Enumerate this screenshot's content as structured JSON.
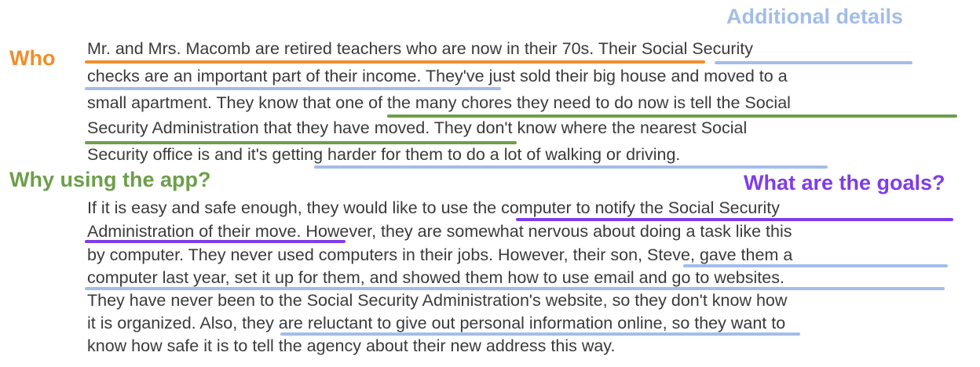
{
  "colors": {
    "who": "#ee8f2a",
    "additional": "#a3bde9",
    "why": "#6e9e4a",
    "goals": "#7f3de8",
    "text": "#3a3a3a"
  },
  "labels": {
    "additional_details": "Additional details",
    "who": "Who",
    "why": "Why using the app?",
    "goals": "What are the goals?"
  },
  "paragraph1": [
    "Mr. and Mrs. Macomb are retired teachers who are now in their 70s. Their Social Security",
    "checks are an important part of their income. They've just sold their big house and moved to a",
    "small apartment. They know that one of the many chores they need to do now is tell the Social",
    "Security Administration that they have moved. They don't know where the nearest Social",
    "Security office is and it's getting harder for them to do a lot of walking or driving."
  ],
  "paragraph2": [
    "If it is easy and safe enough, they would like to use the computer to notify the Social Security",
    "Administration of their move. However, they are somewhat nervous about doing a task like this",
    "by computer. They never used computers in their jobs. However, their son, Steve, gave them a",
    "computer last year, set it up for them, and showed them how to use email and go to websites.",
    "They have never been to the Social Security Administration's website, so they don't know how",
    "it is organized. Also, they are reluctant to give out personal information online, so they want to",
    "know how safe it is to tell the agency about their new address this way."
  ]
}
